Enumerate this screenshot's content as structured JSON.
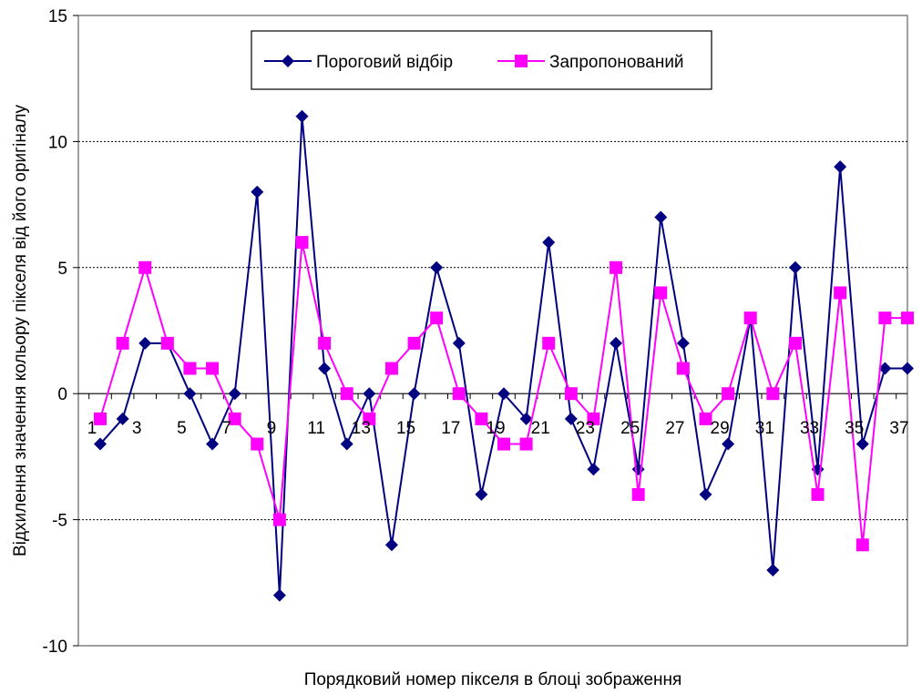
{
  "chart_data": {
    "type": "line",
    "xlabel": "Порядковий номер пікселя в блоці зображення",
    "ylabel": "Відхилення значення кольору пікселя від його оригіналу",
    "ylim": [
      -10,
      15
    ],
    "y_ticks": [
      -10,
      -5,
      0,
      5,
      10,
      15
    ],
    "grid": "horizontal dotted",
    "legend_placement": "top-center",
    "x": [
      1,
      2,
      3,
      4,
      5,
      6,
      7,
      8,
      9,
      10,
      11,
      12,
      13,
      14,
      15,
      16,
      17,
      18,
      19,
      20,
      21,
      22,
      23,
      24,
      25,
      26,
      27,
      28,
      29,
      30,
      31,
      32,
      33,
      34,
      35,
      36,
      37
    ],
    "x_tick_labels": [
      "1",
      "3",
      "5",
      "7",
      "9",
      "11",
      "13",
      "15",
      "17",
      "19",
      "21",
      "23",
      "25",
      "27",
      "29",
      "31",
      "33",
      "35",
      "37"
    ],
    "series": [
      {
        "name": "Пороговий відбір",
        "color": "#000080",
        "marker": "diamond",
        "values": [
          -2,
          -1,
          2,
          2,
          0,
          -2,
          0,
          8,
          -8,
          11,
          1,
          -2,
          0,
          -6,
          0,
          5,
          2,
          -4,
          0,
          -1,
          6,
          -1,
          -3,
          2,
          -3,
          7,
          2,
          -4,
          -2,
          3,
          -7,
          5,
          -3,
          9,
          -2,
          1,
          1
        ]
      },
      {
        "name": "Запропонований",
        "color": "#ff00ff",
        "marker": "square",
        "values": [
          -1,
          2,
          5,
          2,
          1,
          1,
          -1,
          -2,
          -5,
          6,
          2,
          0,
          -1,
          1,
          2,
          3,
          0,
          -1,
          -2,
          -2,
          2,
          0,
          -1,
          5,
          -4,
          4,
          1,
          -1,
          0,
          3,
          0,
          2,
          -4,
          4,
          -6,
          3,
          3
        ]
      }
    ]
  }
}
